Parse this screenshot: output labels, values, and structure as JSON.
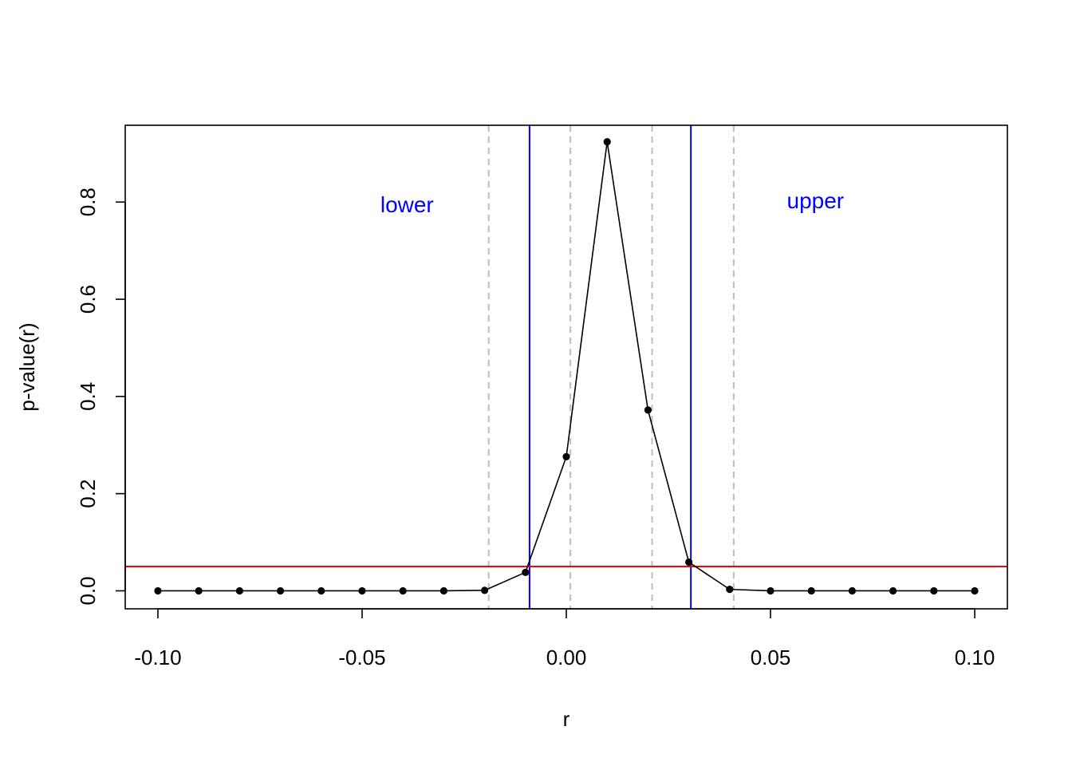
{
  "chart_data": {
    "type": "line",
    "title": "",
    "xlabel": "r",
    "ylabel": "p-value(r)",
    "xlim": [
      -0.108,
      0.108
    ],
    "ylim": [
      -0.037,
      0.958
    ],
    "x_ticks": [
      -0.1,
      -0.05,
      0.0,
      0.05,
      0.1
    ],
    "x_tick_labels": [
      "-0.10",
      "-0.05",
      "0.00",
      "0.05",
      "0.10"
    ],
    "y_ticks": [
      0.0,
      0.2,
      0.4,
      0.6,
      0.8
    ],
    "y_tick_labels": [
      "0.0",
      "0.2",
      "0.4",
      "0.6",
      "0.8"
    ],
    "grid": false,
    "series": [
      {
        "x": [
          -0.1,
          -0.09,
          -0.08,
          -0.07,
          -0.06,
          -0.05,
          -0.04,
          -0.03,
          -0.02,
          -0.01,
          0.0,
          0.01,
          0.02,
          0.03,
          0.04,
          0.05,
          0.06,
          0.07,
          0.08,
          0.09,
          0.1
        ],
        "y": [
          0.0,
          0.0,
          0.0,
          0.0,
          0.0,
          0.0,
          0.0,
          0.0,
          0.001,
          0.038,
          0.276,
          0.924,
          0.372,
          0.059,
          0.003,
          0.0,
          0.0,
          0.0,
          0.0,
          0.0,
          0.0
        ],
        "color": "#000000"
      }
    ],
    "hline": {
      "y": 0.05,
      "color": "#ff0000"
    },
    "vlines_solid": {
      "x": [
        -0.009,
        0.0305
      ],
      "color": "#0000ff"
    },
    "vlines_dashed": {
      "x": [
        -0.019,
        0.001,
        0.021,
        0.041
      ],
      "color": "#bebebe"
    },
    "annotations": [
      {
        "text": "lower",
        "x": -0.039,
        "y": 0.795,
        "color": "#0000ff"
      },
      {
        "text": "upper",
        "x": 0.061,
        "y": 0.803,
        "color": "#0000ff"
      }
    ]
  }
}
